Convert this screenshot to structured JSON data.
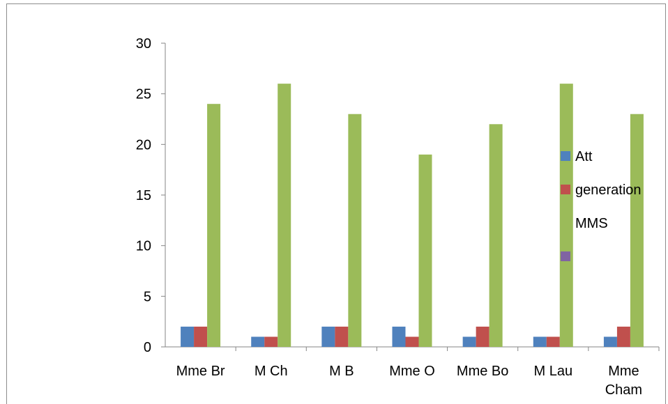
{
  "chart_data": {
    "type": "bar",
    "categories": [
      [
        "Mme Br"
      ],
      [
        "M Ch"
      ],
      [
        "M B"
      ],
      [
        "Mme O"
      ],
      [
        "Mme Bo"
      ],
      [
        "M Lau"
      ],
      [
        "Mme",
        "Cham"
      ]
    ],
    "series": [
      {
        "name": "Att",
        "color": "#4f81bd",
        "values": [
          2,
          1,
          2,
          2,
          1,
          1,
          1
        ]
      },
      {
        "name": "generation",
        "color": "#c0504d",
        "values": [
          2,
          1,
          2,
          1,
          2,
          1,
          2
        ]
      },
      {
        "name": "MMS",
        "color": "#9bbb59",
        "values": [
          24,
          26,
          23,
          19,
          22,
          26,
          23
        ]
      }
    ],
    "legend_extra": {
      "name": "",
      "color": "#8064a2"
    },
    "ylim": [
      0,
      30
    ],
    "yticks": [
      0,
      5,
      10,
      15,
      20,
      25,
      30
    ],
    "grid": false,
    "legend_position": "right"
  }
}
